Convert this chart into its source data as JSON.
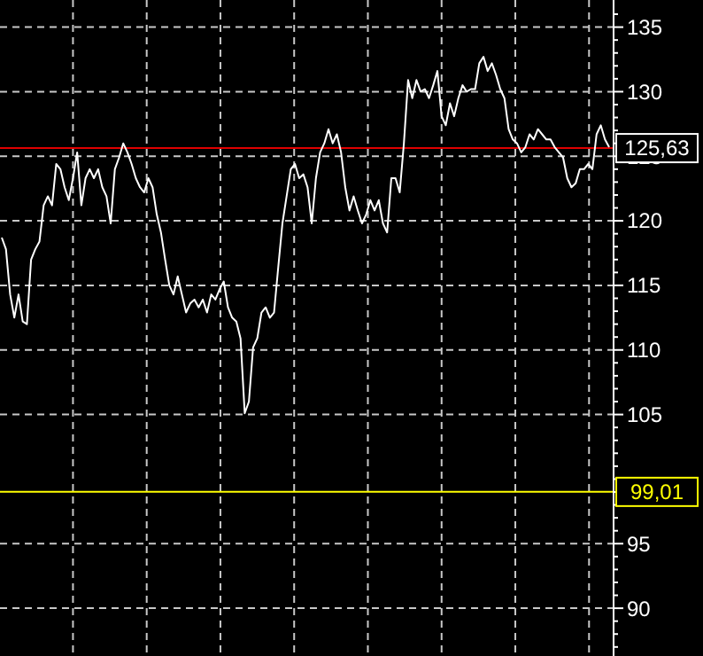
{
  "chart_data": {
    "type": "line",
    "categories": [
      null,
      null,
      null,
      null,
      null,
      null,
      null,
      null,
      null,
      null,
      null,
      null,
      null,
      null,
      null,
      null,
      null,
      null,
      null,
      null,
      null,
      null,
      null,
      null,
      null,
      null,
      null,
      null,
      null,
      null,
      null,
      null,
      null,
      null,
      null,
      null,
      null,
      null,
      null,
      null,
      null,
      null,
      null,
      null,
      null,
      null,
      null,
      null,
      null,
      null,
      null,
      null,
      null,
      null,
      null,
      null,
      null,
      null,
      null,
      null,
      null,
      null,
      null,
      null,
      null,
      null,
      null,
      null,
      null,
      null,
      null,
      null,
      null,
      null,
      null,
      null,
      null,
      null,
      null,
      null,
      null,
      null,
      null,
      null,
      null,
      null,
      null,
      null,
      null,
      null,
      null,
      null,
      null,
      null,
      null,
      null,
      null,
      null,
      null,
      null,
      null,
      null,
      null,
      null,
      null,
      null,
      null,
      null,
      null,
      null,
      null,
      null,
      null,
      null,
      null,
      null,
      null,
      null,
      null,
      null,
      null,
      null,
      null,
      null,
      null,
      null,
      null,
      null,
      null,
      null,
      null,
      null,
      null,
      null,
      null,
      null,
      null,
      null,
      null,
      null,
      null,
      null,
      null,
      null,
      null,
      null
    ],
    "series": [
      {
        "color": "#ffffff",
        "values": [
          118.7,
          117.8,
          114.3,
          112.5,
          114.3,
          112.2,
          112,
          117,
          117.8,
          118.4,
          121.2,
          121.9,
          121.2,
          124.4,
          124,
          122.6,
          121.6,
          123.3,
          125.3,
          121.2,
          123.3,
          124,
          123.3,
          124,
          122.6,
          121.9,
          119.8,
          124,
          124.9,
          126,
          125.3,
          124.4,
          123.3,
          122.6,
          122.2,
          123.3,
          122.6,
          120.5,
          119.1,
          117,
          115,
          114.3,
          115.7,
          114.3,
          112.9,
          113.6,
          113.9,
          113.3,
          113.9,
          112.9,
          114.3,
          113.9,
          114.7,
          115.3,
          113.3,
          112.5,
          112.2,
          110.9,
          105.1,
          106,
          110.2,
          110.9,
          112.9,
          113.3,
          112.5,
          112.9,
          116.4,
          119.8,
          121.9,
          124,
          124.4,
          123.3,
          123.6,
          122.6,
          119.8,
          123.3,
          125.3,
          126,
          127.1,
          126,
          126.7,
          125.3,
          122.6,
          120.8,
          121.9,
          120.8,
          119.8,
          120.5,
          121.6,
          120.8,
          121.6,
          119.8,
          119.1,
          123.3,
          123.3,
          122.2,
          126,
          130.9,
          129.5,
          130.9,
          130,
          130.2,
          129.5,
          130.5,
          131.6,
          128.1,
          127.4,
          129.1,
          128.1,
          129.5,
          130.5,
          130,
          130.2,
          130.2,
          132.2,
          132.7,
          131.6,
          132.2,
          131.3,
          130.2,
          129.5,
          127.1,
          126.3,
          126,
          125.3,
          125.7,
          126.7,
          126.3,
          127.1,
          126.7,
          126.3,
          126.3,
          125.7,
          125.3,
          124.9,
          123.3,
          122.6,
          122.9,
          124,
          124,
          124.4,
          124,
          126.7,
          127.4,
          126.3,
          125.7
        ]
      }
    ],
    "ylim": [
      86.3,
      137.1
    ],
    "yticks": [
      {
        "value": 87,
        "label": null
      },
      {
        "value": 88,
        "label": null
      },
      {
        "value": 89,
        "label": null
      },
      90,
      {
        "value": 91,
        "label": null
      },
      {
        "value": 92,
        "label": null
      },
      {
        "value": 93,
        "label": null
      },
      {
        "value": 94,
        "label": null
      },
      95,
      {
        "value": 96,
        "label": null
      },
      {
        "value": 97,
        "label": null
      },
      {
        "value": 98,
        "label": null
      },
      {
        "value": 99,
        "label": null
      },
      {
        "value": 100,
        "label": null
      },
      {
        "value": 101,
        "label": null
      },
      {
        "value": 102,
        "label": null
      },
      {
        "value": 103,
        "label": null
      },
      {
        "value": 104,
        "label": null
      },
      105,
      {
        "value": 106,
        "label": null
      },
      {
        "value": 107,
        "label": null
      },
      {
        "value": 108,
        "label": null
      },
      {
        "value": 109,
        "label": null
      },
      110,
      {
        "value": 111,
        "label": null
      },
      {
        "value": 112,
        "label": null
      },
      {
        "value": 113,
        "label": null
      },
      {
        "value": 114,
        "label": null
      },
      115,
      {
        "value": 116,
        "label": null
      },
      {
        "value": 117,
        "label": null
      },
      {
        "value": 118,
        "label": null
      },
      {
        "value": 119,
        "label": null
      },
      120,
      {
        "value": 121,
        "label": null
      },
      {
        "value": 122,
        "label": null
      },
      {
        "value": 123,
        "label": null
      },
      {
        "value": 124,
        "label": null
      },
      125,
      {
        "value": 126,
        "label": null
      },
      {
        "value": 127,
        "label": null
      },
      {
        "value": 128,
        "label": null
      },
      {
        "value": 129,
        "label": null
      },
      130,
      {
        "value": 131,
        "label": null
      },
      {
        "value": 132,
        "label": null
      },
      {
        "value": 133,
        "label": null
      },
      {
        "value": 134,
        "label": null
      },
      135,
      {
        "value": 136,
        "label": null
      }
    ],
    "grid": true,
    "tick_labels": "y",
    "ref_lines": [
      {
        "axis": "y",
        "value": 125.63,
        "label": "125,63",
        "color": "#e00000"
      },
      {
        "axis": "y",
        "value": 99.01,
        "label": "99,01",
        "color": "#ffff00"
      }
    ]
  }
}
